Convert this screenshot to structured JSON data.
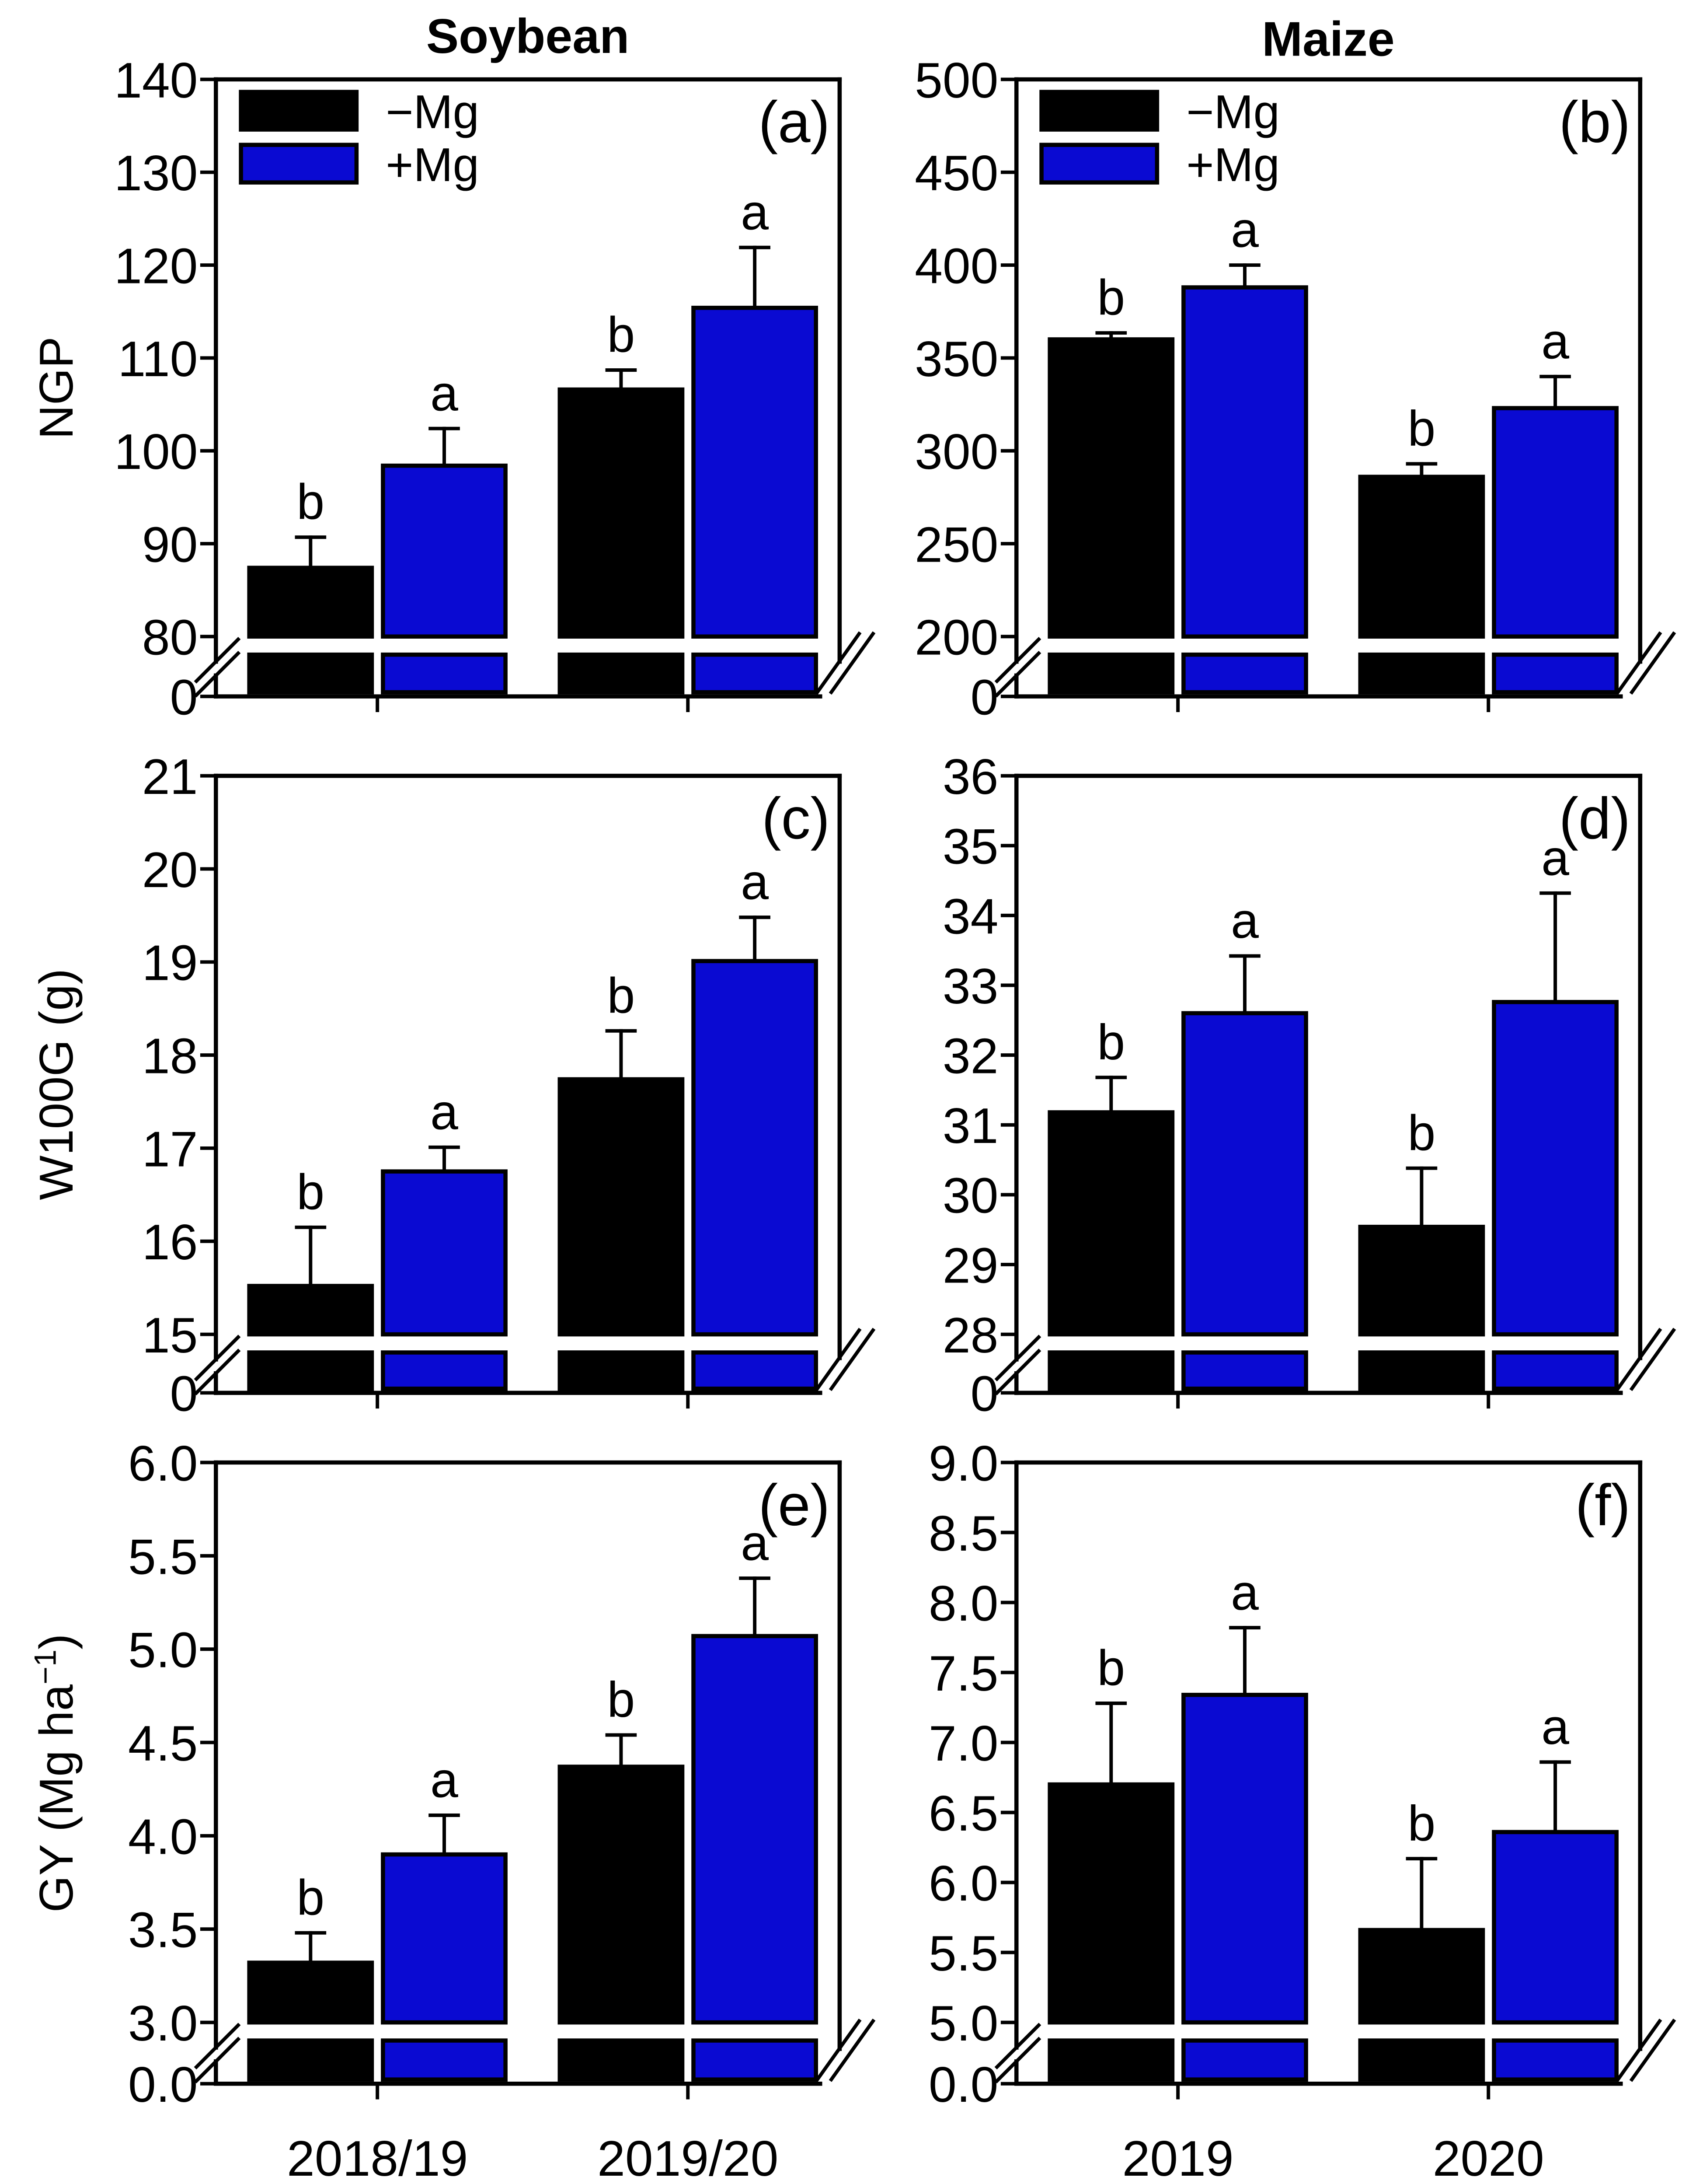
{
  "colors": {
    "minus_mg": "#000000",
    "plus_mg": "#0a0ad2",
    "axis": "#000000",
    "background": "#ffffff"
  },
  "chart_data": [
    {
      "type": "bar",
      "title": "Soybean",
      "categories": [
        "2018/19",
        "2019/20"
      ],
      "legend": [
        "−Mg",
        "+Mg"
      ],
      "panels": [
        {
          "label": "(a)",
          "ylabel": "NGP",
          "ylim": [
            80,
            140
          ],
          "ytick_labels": [
            "80",
            "90",
            "100",
            "110",
            "120",
            "130",
            "140"
          ],
          "axis_break_label": "0",
          "series": [
            {
              "values": [
                87.4,
                106.6
              ],
              "errors": [
                3.3,
                2.1
              ],
              "letters": [
                "b",
                "b"
              ]
            },
            {
              "values": [
                98.4,
                115.4
              ],
              "errors": [
                4.0,
                6.5
              ],
              "letters": [
                "a",
                "a"
              ]
            }
          ]
        },
        {
          "label": "(c)",
          "ylabel": "W100G (g)",
          "ylim": [
            15,
            21
          ],
          "ytick_labels": [
            "15",
            "16",
            "17",
            "18",
            "19",
            "20",
            "21"
          ],
          "axis_break_label": "0",
          "series": [
            {
              "values": [
                15.52,
                17.74
              ],
              "errors": [
                0.63,
                0.52
              ],
              "letters": [
                "b",
                "b"
              ]
            },
            {
              "values": [
                16.75,
                19.01
              ],
              "errors": [
                0.26,
                0.47
              ],
              "letters": [
                "a",
                "a"
              ]
            }
          ]
        },
        {
          "label": "(e)",
          "ylabel": "GY (Mg ha",
          "ylabel_superscript": "−1",
          "ylabel_suffix": ")",
          "ylim": [
            3.0,
            6.0
          ],
          "ytick_labels": [
            "3.0",
            "3.5",
            "4.0",
            "4.5",
            "5.0",
            "5.5",
            "6.0"
          ],
          "axis_break_label": "0.0",
          "series": [
            {
              "values": [
                3.32,
                4.37
              ],
              "errors": [
                0.16,
                0.17
              ],
              "letters": [
                "b",
                "b"
              ]
            },
            {
              "values": [
                3.9,
                5.07
              ],
              "errors": [
                0.21,
                0.31
              ],
              "letters": [
                "a",
                "a"
              ]
            }
          ]
        }
      ]
    },
    {
      "type": "bar",
      "title": "Maize",
      "categories": [
        "2019",
        "2020"
      ],
      "legend": [
        "−Mg",
        "+Mg"
      ],
      "panels": [
        {
          "label": "(b)",
          "ylim": [
            200,
            500
          ],
          "ytick_labels": [
            "200",
            "250",
            "300",
            "350",
            "400",
            "450",
            "500"
          ],
          "axis_break_label": "0",
          "series": [
            {
              "values": [
                360,
                286
              ],
              "errors": [
                3.5,
                7
              ],
              "letters": [
                "b",
                "b"
              ]
            },
            {
              "values": [
                388,
                323
              ],
              "errors": [
                12,
                17
              ],
              "letters": [
                "a",
                "a"
              ]
            }
          ]
        },
        {
          "label": "(d)",
          "ylim": [
            28,
            36
          ],
          "ytick_labels": [
            "28",
            "29",
            "30",
            "31",
            "32",
            "33",
            "34",
            "35",
            "36"
          ],
          "axis_break_label": "0",
          "series": [
            {
              "values": [
                31.18,
                29.54
              ],
              "errors": [
                0.5,
                0.84
              ],
              "letters": [
                "b",
                "b"
              ]
            },
            {
              "values": [
                32.6,
                32.76
              ],
              "errors": [
                0.82,
                1.56
              ],
              "letters": [
                "a",
                "a"
              ]
            }
          ]
        },
        {
          "label": "(f)",
          "ylim": [
            5.0,
            9.0
          ],
          "ytick_labels": [
            "5.0",
            "5.5",
            "6.0",
            "6.5",
            "7.0",
            "7.5",
            "8.0",
            "8.5",
            "9.0"
          ],
          "axis_break_label": "0.0",
          "series": [
            {
              "values": [
                6.7,
                5.66
              ],
              "errors": [
                0.58,
                0.51
              ],
              "letters": [
                "b",
                "b"
              ]
            },
            {
              "values": [
                7.34,
                6.36
              ],
              "errors": [
                0.48,
                0.5
              ],
              "letters": [
                "a",
                "a"
              ]
            }
          ]
        }
      ]
    }
  ]
}
